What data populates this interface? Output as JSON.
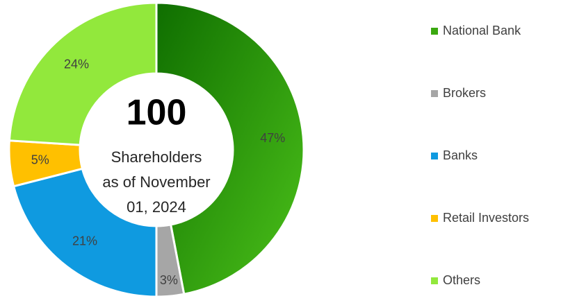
{
  "chart_data": {
    "type": "donut",
    "categories": [
      "National Bank",
      "Brokers",
      "Banks",
      "Retail Investors",
      "Others"
    ],
    "values": [
      47,
      3,
      21,
      5,
      24
    ],
    "value_labels": [
      "47%",
      "3%",
      "21%",
      "5%",
      "24%"
    ],
    "colors": [
      "#3aa810",
      "#a6a6a6",
      "#0f9ae0",
      "#ffc000",
      "#92e83c"
    ],
    "center_value": 100,
    "center_lines": [
      "Shareholders",
      "as of November",
      "01, 2024"
    ],
    "legend": "right"
  }
}
